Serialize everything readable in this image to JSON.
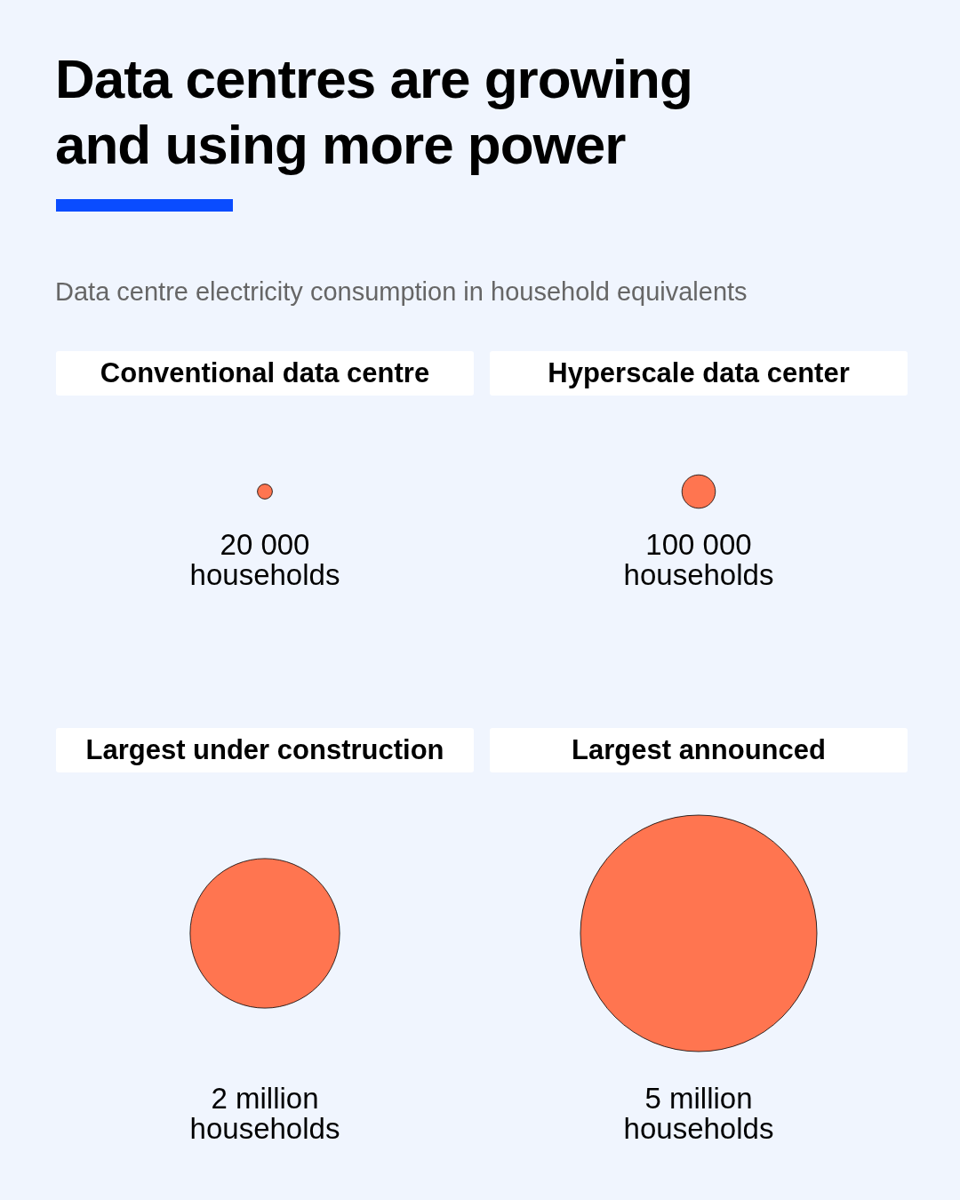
{
  "chart_data": {
    "type": "other",
    "title": "Data centres are growing and using more power",
    "subtitle": "Data centre electricity consumption in household equivalents",
    "categories": [
      "Conventional data centre",
      "Hyperscale data center",
      "Largest under construction",
      "Largest announced"
    ],
    "values": [
      20000,
      100000,
      2000000,
      5000000
    ],
    "value_labels": [
      "20 000 households",
      "100 000 households",
      "2 million households",
      "5 million households"
    ],
    "color": "#ff7550"
  }
}
